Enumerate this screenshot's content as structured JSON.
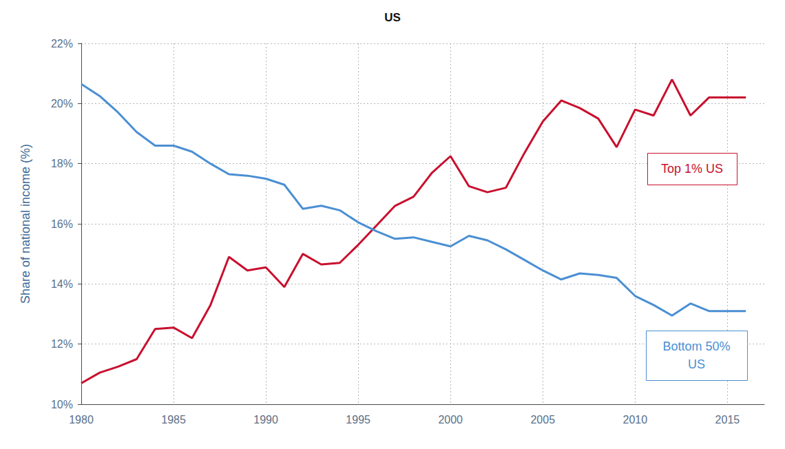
{
  "chart_data": {
    "type": "line",
    "title": "US",
    "y_label": "Share of national income (%)",
    "x": [
      1980,
      1981,
      1982,
      1983,
      1984,
      1985,
      1986,
      1987,
      1988,
      1989,
      1990,
      1991,
      1992,
      1993,
      1994,
      1995,
      1996,
      1997,
      1998,
      1999,
      2000,
      2001,
      2002,
      2003,
      2004,
      2005,
      2006,
      2007,
      2008,
      2009,
      2010,
      2011,
      2012,
      2013,
      2014,
      2015,
      2016
    ],
    "series": [
      {
        "name": "Top 1% US",
        "color": "#c8102e",
        "values": [
          10.7,
          11.05,
          11.25,
          11.5,
          12.5,
          12.55,
          12.2,
          13.3,
          14.9,
          14.45,
          14.55,
          13.9,
          15.0,
          14.65,
          14.7,
          15.3,
          15.95,
          16.6,
          16.9,
          17.7,
          18.25,
          17.25,
          17.05,
          17.2,
          18.35,
          19.4,
          20.1,
          19.85,
          19.5,
          18.55,
          19.8,
          19.6,
          20.8,
          19.6,
          20.2,
          20.2,
          20.2
        ]
      },
      {
        "name": "Bottom 50%\nUS",
        "color": "#4a8fd3",
        "values": [
          20.65,
          20.25,
          19.7,
          19.05,
          18.6,
          18.6,
          18.4,
          18.0,
          17.65,
          17.6,
          17.5,
          17.3,
          16.5,
          16.6,
          16.45,
          16.05,
          15.75,
          15.5,
          15.55,
          15.4,
          15.25,
          15.6,
          15.45,
          15.15,
          14.8,
          14.45,
          14.15,
          14.35,
          14.3,
          14.2,
          13.6,
          13.3,
          12.95,
          13.35,
          13.1,
          13.1,
          13.1
        ]
      }
    ],
    "xlim": [
      1980,
      2017
    ],
    "xticks": [
      1980,
      1985,
      1990,
      1995,
      2000,
      2005,
      2010,
      2015
    ],
    "ylim": [
      10,
      22
    ],
    "yticks": [
      {
        "value": 10,
        "label": "10%"
      },
      {
        "value": 12,
        "label": "12%"
      },
      {
        "value": 14,
        "label": "14%"
      },
      {
        "value": 16,
        "label": "16%"
      },
      {
        "value": 18,
        "label": "18%"
      },
      {
        "value": 20,
        "label": "20%"
      },
      {
        "value": 22,
        "label": "22%"
      }
    ],
    "grid": true
  }
}
